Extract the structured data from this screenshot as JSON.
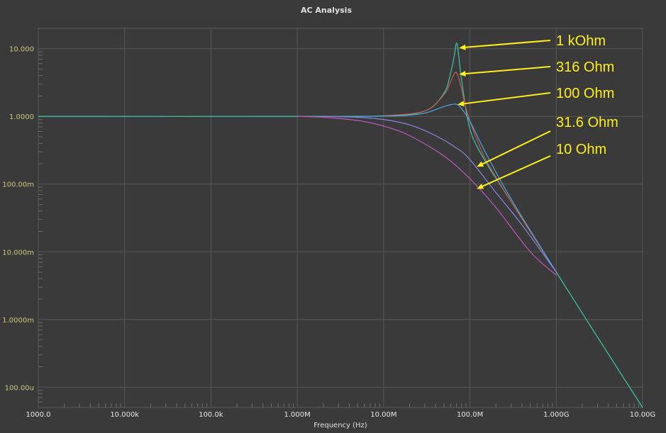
{
  "chart_data": {
    "type": "line",
    "title": "AC Analysis",
    "xlabel": "Frequency (Hz)",
    "ylabel": "",
    "xscale": "log",
    "yscale": "log",
    "xlim": [
      1000,
      10000000000
    ],
    "ylim": [
      5e-05,
      20
    ],
    "grid": true,
    "x_ticks": [
      {
        "value": 1000,
        "label": "1000.0"
      },
      {
        "value": 10000,
        "label": "10.000k"
      },
      {
        "value": 100000,
        "label": "100.0k"
      },
      {
        "value": 1000000,
        "label": "1.000M"
      },
      {
        "value": 10000000,
        "label": "10.00M"
      },
      {
        "value": 100000000,
        "label": "100.0M"
      },
      {
        "value": 1000000000,
        "label": "1.000G"
      },
      {
        "value": 10000000000,
        "label": "10.00G"
      }
    ],
    "y_ticks": [
      {
        "value": 10,
        "label": "10.000"
      },
      {
        "value": 1,
        "label": "1.0000"
      },
      {
        "value": 0.1,
        "label": "100.00m"
      },
      {
        "value": 0.01,
        "label": "10.000m"
      },
      {
        "value": 0.001,
        "label": "1.0000m"
      },
      {
        "value": 0.0001,
        "label": "100.00u"
      }
    ],
    "series": [
      {
        "color": "#3cc9a6",
        "points": [
          [
            1000,
            1
          ],
          [
            1000000,
            1
          ],
          [
            10000000,
            1.02
          ],
          [
            30000000,
            1.2
          ],
          [
            50000000,
            2.2
          ],
          [
            60000000,
            4.5
          ],
          [
            66000000,
            8
          ],
          [
            70000000,
            12.2
          ],
          [
            74000000,
            8
          ],
          [
            80000000,
            3.5
          ],
          [
            100000000,
            0.65
          ],
          [
            150000000,
            0.22
          ],
          [
            300000000,
            0.055
          ],
          [
            1000000000,
            0.005
          ],
          [
            3000000000,
            0.00055
          ],
          [
            10000000000,
            5e-05
          ]
        ]
      },
      {
        "color": "#c8584e",
        "points": [
          [
            10000000,
            1.02
          ],
          [
            30000000,
            1.2
          ],
          [
            50000000,
            2.1
          ],
          [
            60000000,
            3.3
          ],
          [
            68000000,
            4.5
          ],
          [
            75000000,
            3.5
          ],
          [
            85000000,
            1.8
          ],
          [
            100000000,
            0.85
          ],
          [
            150000000,
            0.24
          ],
          [
            300000000,
            0.055
          ],
          [
            1000000000,
            0.005
          ]
        ]
      },
      {
        "color": "#4aa8e0",
        "points": [
          [
            5000000,
            1
          ],
          [
            15000000,
            1.02
          ],
          [
            30000000,
            1.12
          ],
          [
            50000000,
            1.4
          ],
          [
            68000000,
            1.52
          ],
          [
            80000000,
            1.3
          ],
          [
            100000000,
            0.85
          ],
          [
            150000000,
            0.3
          ],
          [
            300000000,
            0.06
          ],
          [
            1000000000,
            0.005
          ]
        ]
      },
      {
        "color": "#8a84e0",
        "points": [
          [
            2000000,
            1
          ],
          [
            5000000,
            0.97
          ],
          [
            10000000,
            0.9
          ],
          [
            20000000,
            0.75
          ],
          [
            40000000,
            0.52
          ],
          [
            70000000,
            0.34
          ],
          [
            100000000,
            0.23
          ],
          [
            200000000,
            0.075
          ],
          [
            400000000,
            0.025
          ],
          [
            1000000000,
            0.005
          ]
        ]
      },
      {
        "color": "#c056c0",
        "points": [
          [
            1000000,
            1
          ],
          [
            2000000,
            0.97
          ],
          [
            5000000,
            0.87
          ],
          [
            10000000,
            0.72
          ],
          [
            20000000,
            0.52
          ],
          [
            50000000,
            0.26
          ],
          [
            100000000,
            0.12
          ],
          [
            200000000,
            0.045
          ],
          [
            500000000,
            0.01
          ],
          [
            1000000000,
            0.0045
          ]
        ]
      }
    ],
    "annotations": [
      {
        "text": "1 kOhm",
        "arrow_to": [
          75000000,
          10.3
        ]
      },
      {
        "text": "316 Ohm",
        "arrow_to": [
          75000000,
          4.2
        ]
      },
      {
        "text": "100 Ohm",
        "arrow_to": [
          72000000,
          1.5
        ]
      },
      {
        "text": "31.6 Ohm",
        "arrow_to": [
          120000000,
          0.18
        ]
      },
      {
        "text": "10 Ohm",
        "arrow_to": [
          120000000,
          0.085
        ]
      }
    ]
  }
}
